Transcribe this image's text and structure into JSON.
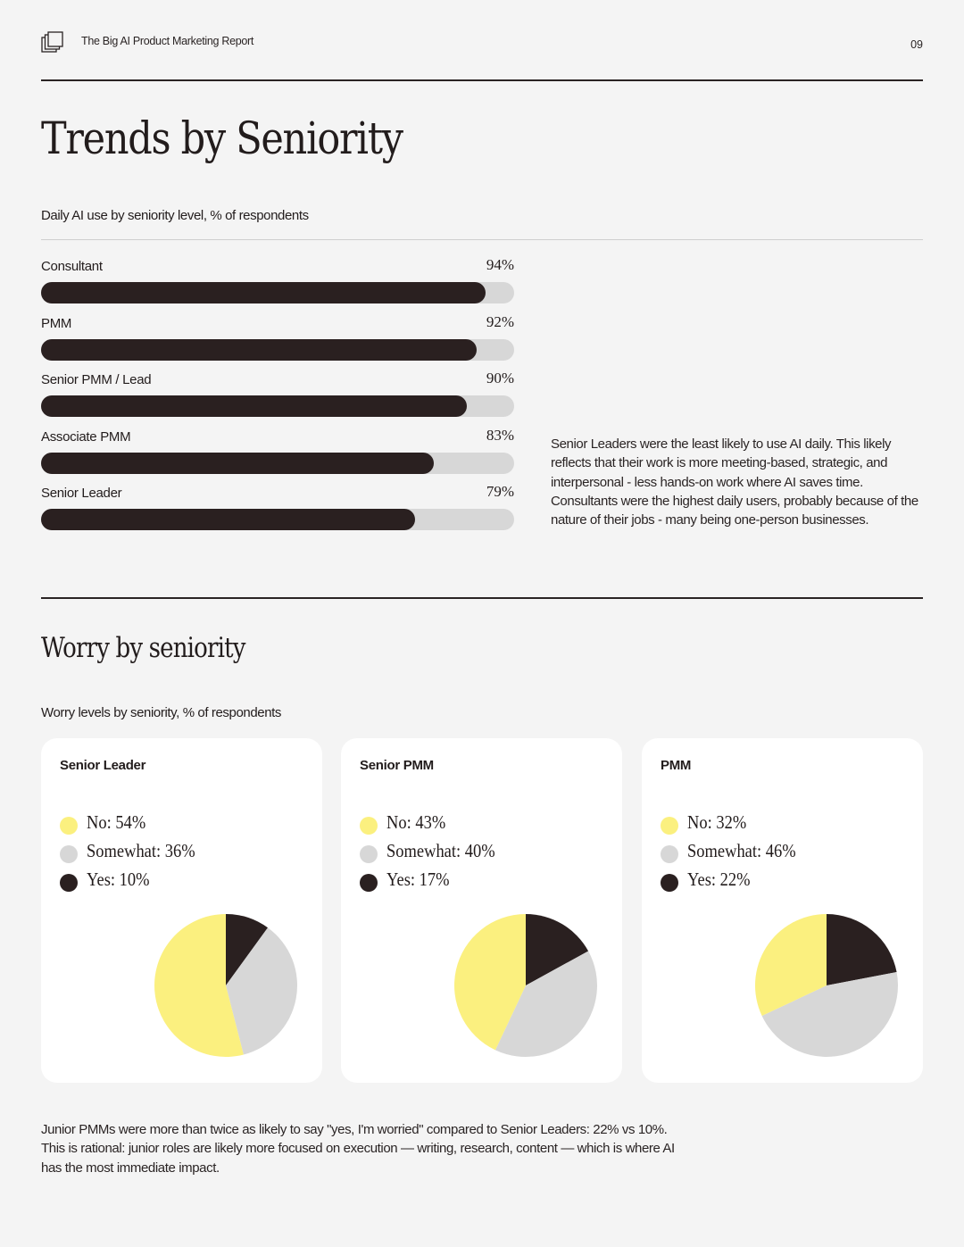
{
  "header": {
    "report_title": "The Big AI Product Marketing Report",
    "page_number": "09",
    "logo_icon": "stacked-squares-icon"
  },
  "title": "Trends by Seniority",
  "colors": {
    "dark": "#2a2020",
    "gray": "#d7d7d7",
    "yellow": "#fbf07f"
  },
  "daily_use": {
    "subtitle": "Daily AI use by seniority level, % of respondents",
    "note": "Senior Leaders were the least likely to use AI daily. This likely reflects that their work is more meeting-based, strategic, and interpersonal - less hands-on work where AI saves time. Consultants were the highest daily users, probably because of the nature of their jobs - many being one-person businesses."
  },
  "worry": {
    "title": "Worry by seniority",
    "subtitle": "Worry levels by seniority, % of respondents",
    "note": "Junior PMMs were more than twice as likely to say \"yes, I'm worried\" compared to Senior Leaders: 22% vs 10%. This is rational: junior roles are likely more focused on execution — writing, research, content — which is where AI has the most immediate impact."
  },
  "chart_data": [
    {
      "type": "bar",
      "orientation": "horizontal",
      "title": "Daily AI use by seniority level, % of respondents",
      "categories": [
        "Consultant",
        "PMM",
        "Senior PMM / Lead",
        "Associate PMM",
        "Senior Leader"
      ],
      "values": [
        94,
        92,
        90,
        83,
        79
      ],
      "value_labels": [
        "94%",
        "92%",
        "90%",
        "83%",
        "79%"
      ],
      "xlim": [
        0,
        100
      ]
    },
    {
      "type": "pie",
      "title": "Senior Leader",
      "labels": [
        "No",
        "Somewhat",
        "Yes"
      ],
      "values": [
        54,
        36,
        10
      ],
      "legend": [
        "No: 54%",
        "Somewhat: 36%",
        "Yes: 10%"
      ],
      "colors": [
        "#fbf07f",
        "#d7d7d7",
        "#2a2020"
      ]
    },
    {
      "type": "pie",
      "title": "Senior PMM",
      "labels": [
        "No",
        "Somewhat",
        "Yes"
      ],
      "values": [
        43,
        40,
        17
      ],
      "legend": [
        "No: 43%",
        "Somewhat: 40%",
        "Yes: 17%"
      ],
      "colors": [
        "#fbf07f",
        "#d7d7d7",
        "#2a2020"
      ]
    },
    {
      "type": "pie",
      "title": "PMM",
      "labels": [
        "No",
        "Somewhat",
        "Yes"
      ],
      "values": [
        32,
        46,
        22
      ],
      "legend": [
        "No: 32%",
        "Somewhat: 46%",
        "Yes: 22%"
      ],
      "colors": [
        "#fbf07f",
        "#d7d7d7",
        "#2a2020"
      ]
    }
  ]
}
